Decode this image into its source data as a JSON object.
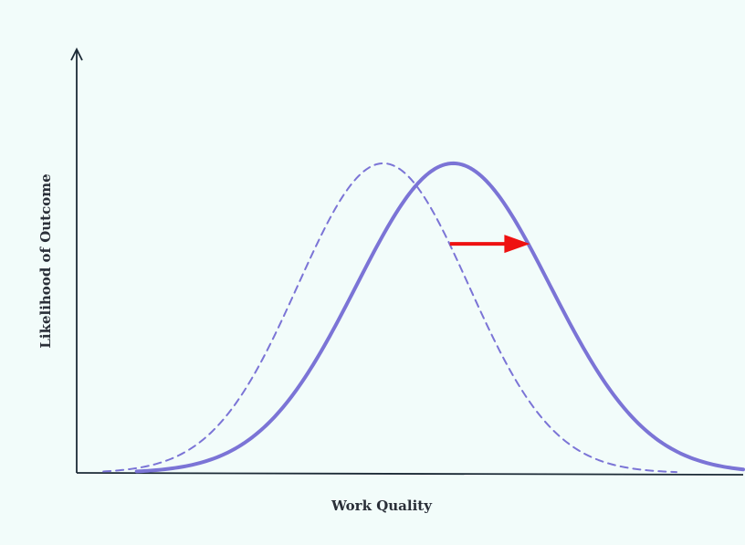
{
  "chart_data": {
    "type": "line",
    "title": "",
    "xlabel": "Work Quality",
    "ylabel": "Likelihood of Outcome",
    "xlim": [
      0,
      10
    ],
    "ylim": [
      0,
      1.1
    ],
    "grid": false,
    "legend": "none",
    "series": [
      {
        "style": "dashed",
        "color": "#7b74d6",
        "mean": 4.6,
        "sd": 1.28,
        "peak": 1.0,
        "x_range": [
          0.4,
          9.0
        ]
      },
      {
        "style": "solid",
        "color": "#7b74d6",
        "mean": 5.65,
        "sd": 1.45,
        "peak": 1.0,
        "x_range": [
          0.9,
          10.0
        ]
      }
    ],
    "annotations": [
      {
        "type": "arrow",
        "color": "#ee1111",
        "x_from": 5.6,
        "x_to": 6.8,
        "y": 0.74
      }
    ]
  }
}
